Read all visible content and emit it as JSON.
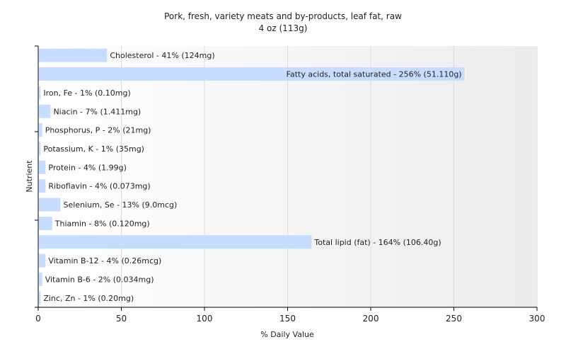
{
  "chart_data": {
    "type": "bar",
    "orientation": "horizontal",
    "title": "Pork, fresh, variety meats and by-products, leaf fat, raw",
    "subtitle": "4 oz (113g)",
    "xlabel": "% Daily Value",
    "ylabel": "Nutrient",
    "xlim": [
      0,
      300
    ],
    "xticks": [
      0,
      50,
      100,
      150,
      200,
      250,
      300
    ],
    "grid": true,
    "bar_color": "#c6ddff",
    "categories": [
      "Cholesterol",
      "Fatty acids, total saturated",
      "Iron, Fe",
      "Niacin",
      "Phosphorus, P",
      "Potassium, K",
      "Protein",
      "Riboflavin",
      "Selenium, Se",
      "Thiamin",
      "Total lipid (fat)",
      "Vitamin B-12",
      "Vitamin B-6",
      "Zinc, Zn"
    ],
    "values": [
      41,
      256,
      1,
      7,
      2,
      1,
      4,
      4,
      13,
      8,
      164,
      4,
      2,
      1
    ],
    "labels": [
      "Cholesterol - 41% (124mg)",
      "Fatty acids, total saturated - 256% (51.110g)",
      "Iron, Fe - 1% (0.10mg)",
      "Niacin - 7% (1.411mg)",
      "Phosphorus, P - 2% (21mg)",
      "Potassium, K - 1% (35mg)",
      "Protein - 4% (1.99g)",
      "Riboflavin - 4% (0.073mg)",
      "Selenium, Se - 13% (9.0mcg)",
      "Thiamin - 8% (0.120mg)",
      "Total lipid (fat) - 164% (106.40g)",
      "Vitamin B-12 - 4% (0.26mcg)",
      "Vitamin B-6 - 2% (0.034mg)",
      "Zinc, Zn - 1% (0.20mg)"
    ]
  }
}
